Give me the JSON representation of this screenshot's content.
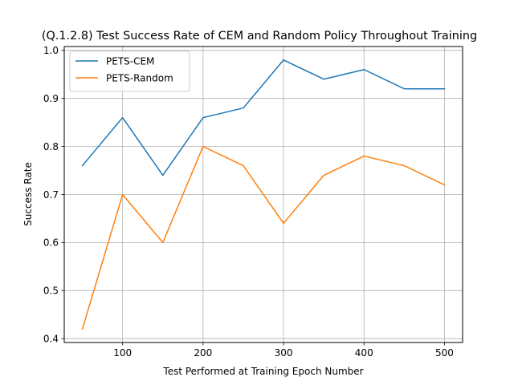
{
  "chart_data": {
    "type": "line",
    "title": "(Q.1.2.8) Test Success Rate of CEM and Random Policy Throughout Training",
    "xlabel": "Test Performed at Training Epoch Number",
    "ylabel": "Success Rate",
    "x": [
      50,
      100,
      150,
      200,
      250,
      300,
      350,
      400,
      450,
      500
    ],
    "series": [
      {
        "name": "PETS-CEM",
        "color": "#1f77b4",
        "values": [
          0.76,
          0.86,
          0.74,
          0.86,
          0.88,
          0.98,
          0.94,
          0.96,
          0.92,
          0.92
        ]
      },
      {
        "name": "PETS-Random",
        "color": "#ff7f0e",
        "values": [
          0.42,
          0.7,
          0.6,
          0.8,
          0.76,
          0.64,
          0.74,
          0.78,
          0.76,
          0.72
        ]
      }
    ],
    "xlim": [
      27.5,
      522.5
    ],
    "ylim": [
      0.392,
      1.008
    ],
    "xticks": [
      100,
      200,
      300,
      400,
      500
    ],
    "xtick_labels": [
      "100",
      "200",
      "300",
      "400",
      "500"
    ],
    "yticks": [
      0.4,
      0.5,
      0.6,
      0.7,
      0.8,
      0.9,
      1.0
    ],
    "ytick_labels": [
      "0.4",
      "0.5",
      "0.6",
      "0.7",
      "0.8",
      "0.9",
      "1.0"
    ],
    "grid": true,
    "legend_position": "upper-left"
  }
}
